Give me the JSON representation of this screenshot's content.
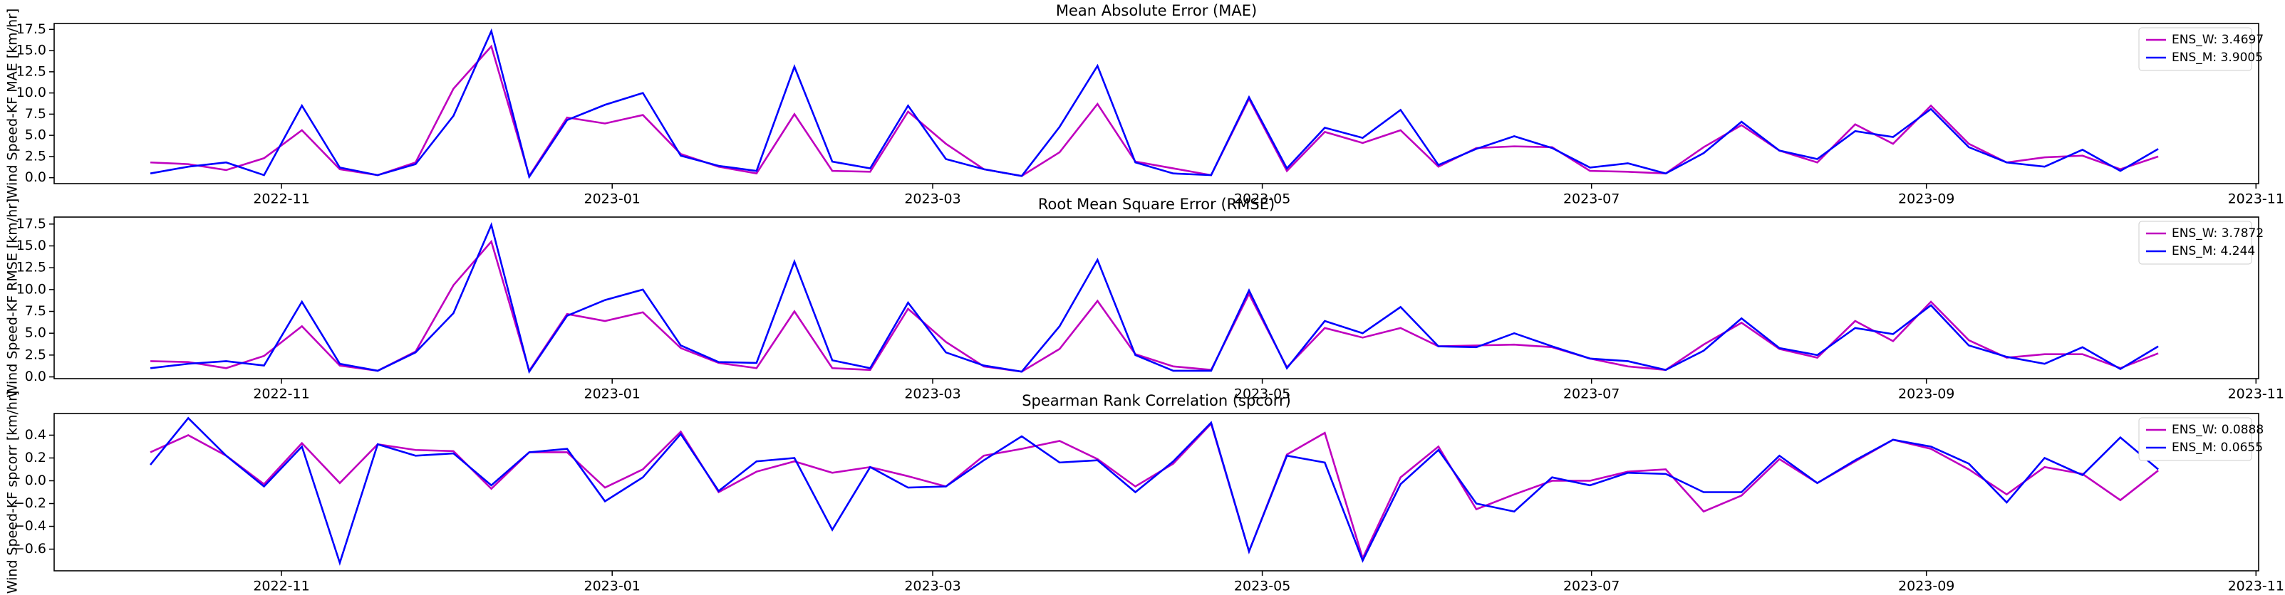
{
  "chart_data": [
    {
      "type": "line",
      "title": "Mean Absolute Error (MAE)",
      "y_label": "Wind Speed-KF MAE [km/hr]",
      "categories": [
        null,
        null,
        null,
        null,
        null,
        null,
        null,
        null,
        null,
        null,
        null,
        null,
        null,
        null,
        null,
        null,
        null,
        null,
        null,
        null,
        null,
        null,
        null,
        null,
        null,
        null,
        null,
        null,
        null,
        null,
        null,
        null,
        null,
        null,
        null,
        null,
        null,
        null,
        null,
        null,
        null,
        null,
        null,
        null,
        null,
        null,
        null,
        null,
        null,
        null,
        null,
        null,
        null,
        null
      ],
      "xlim": [
        -2.54,
        55.65
      ],
      "xticks": [
        {
          "value": 3.46,
          "label": "2022-11"
        },
        {
          "value": 12.19,
          "label": "2023-01"
        },
        {
          "value": 20.65,
          "label": "2023-03"
        },
        {
          "value": 29.35,
          "label": "2023-05"
        },
        {
          "value": 38.04,
          "label": "2023-07"
        },
        {
          "value": 46.88,
          "label": "2023-09"
        },
        {
          "value": 55.58,
          "label": "2023-11"
        }
      ],
      "ylim": [
        -0.7,
        18.2
      ],
      "yticks": [
        {
          "value": 0,
          "label": "0.0"
        },
        2.5,
        {
          "value": 5,
          "label": "5.0"
        },
        7.5,
        {
          "value": 10,
          "label": "10.0"
        },
        12.5,
        {
          "value": 15,
          "label": "15.0"
        },
        17.5
      ],
      "legend": "upper right",
      "series": [
        {
          "name": "ENS_W: 3.4697",
          "color": "#bf00bf",
          "values": [
            1.8,
            1.6,
            0.9,
            2.3,
            5.6,
            1.0,
            0.3,
            1.8,
            10.5,
            15.5,
            0.2,
            7.1,
            6.4,
            7.4,
            2.8,
            1.3,
            0.5,
            7.5,
            0.8,
            0.7,
            7.8,
            4.0,
            1.0,
            0.2,
            3.0,
            8.7,
            1.9,
            1.1,
            0.3,
            9.3,
            0.8,
            5.4,
            4.1,
            5.6,
            1.3,
            3.5,
            3.7,
            3.6,
            0.8,
            0.7,
            0.5,
            3.6,
            6.2,
            3.2,
            1.8,
            6.3,
            4.0,
            8.5,
            4.0,
            1.8,
            2.4,
            2.6,
            1.0,
            2.5
          ]
        },
        {
          "name": "ENS_M: 3.9005",
          "color": "#0000ff",
          "values": [
            0.5,
            1.3,
            1.8,
            0.3,
            8.5,
            1.2,
            0.3,
            1.6,
            7.3,
            17.3,
            0.1,
            6.8,
            8.6,
            10.0,
            2.6,
            1.4,
            0.8,
            13.1,
            1.9,
            1.1,
            8.5,
            2.2,
            1.0,
            0.2,
            6.0,
            13.2,
            1.8,
            0.5,
            0.3,
            9.5,
            1.1,
            5.9,
            4.7,
            8.0,
            1.5,
            3.4,
            4.9,
            3.5,
            1.2,
            1.7,
            0.5,
            2.9,
            6.6,
            3.2,
            2.2,
            5.5,
            4.8,
            8.1,
            3.6,
            1.8,
            1.3,
            3.3,
            0.8,
            3.4
          ]
        }
      ]
    },
    {
      "type": "line",
      "title": "Root Mean Square Error (RMSE)",
      "y_label": "Wind Speed-KF RMSE [km/hr]",
      "categories": [
        null,
        null,
        null,
        null,
        null,
        null,
        null,
        null,
        null,
        null,
        null,
        null,
        null,
        null,
        null,
        null,
        null,
        null,
        null,
        null,
        null,
        null,
        null,
        null,
        null,
        null,
        null,
        null,
        null,
        null,
        null,
        null,
        null,
        null,
        null,
        null,
        null,
        null,
        null,
        null,
        null,
        null,
        null,
        null,
        null,
        null,
        null,
        null,
        null,
        null,
        null,
        null,
        null,
        null
      ],
      "xlim": [
        -2.54,
        55.65
      ],
      "xticks": [
        {
          "value": 3.46,
          "label": "2022-11"
        },
        {
          "value": 12.19,
          "label": "2023-01"
        },
        {
          "value": 20.65,
          "label": "2023-03"
        },
        {
          "value": 29.35,
          "label": "2023-05"
        },
        {
          "value": 38.04,
          "label": "2023-07"
        },
        {
          "value": 46.88,
          "label": "2023-09"
        },
        {
          "value": 55.58,
          "label": "2023-11"
        }
      ],
      "ylim": [
        -0.2,
        18.3
      ],
      "yticks": [
        {
          "value": 0,
          "label": "0.0"
        },
        2.5,
        {
          "value": 5,
          "label": "5.0"
        },
        7.5,
        {
          "value": 10,
          "label": "10.0"
        },
        12.5,
        {
          "value": 15,
          "label": "15.0"
        },
        17.5
      ],
      "legend": "upper right",
      "series": [
        {
          "name": "ENS_W: 3.7872",
          "color": "#bf00bf",
          "values": [
            1.8,
            1.7,
            1.0,
            2.4,
            5.8,
            1.3,
            0.7,
            2.9,
            10.5,
            15.5,
            0.7,
            7.2,
            6.4,
            7.4,
            3.3,
            1.6,
            1.0,
            7.5,
            1.0,
            0.8,
            7.8,
            4.0,
            1.2,
            0.6,
            3.2,
            8.7,
            2.6,
            1.2,
            0.8,
            9.5,
            1.1,
            5.6,
            4.5,
            5.6,
            3.5,
            3.6,
            3.7,
            3.4,
            2.1,
            1.2,
            0.8,
            3.7,
            6.2,
            3.2,
            2.2,
            6.4,
            4.1,
            8.6,
            4.2,
            2.2,
            2.6,
            2.6,
            1.0,
            2.7
          ]
        },
        {
          "name": "ENS_M: 4.244",
          "color": "#0000ff",
          "values": [
            1.0,
            1.5,
            1.8,
            1.3,
            8.6,
            1.5,
            0.7,
            2.8,
            7.3,
            17.4,
            0.6,
            7.0,
            8.8,
            10.0,
            3.6,
            1.7,
            1.6,
            13.2,
            1.9,
            1.0,
            8.5,
            2.8,
            1.3,
            0.6,
            5.8,
            13.4,
            2.5,
            0.7,
            0.7,
            9.9,
            1.0,
            6.4,
            5.0,
            8.0,
            3.5,
            3.4,
            5.0,
            3.5,
            2.1,
            1.8,
            0.8,
            3.0,
            6.7,
            3.3,
            2.5,
            5.6,
            4.9,
            8.2,
            3.6,
            2.3,
            1.5,
            3.4,
            0.9,
            3.5
          ]
        }
      ]
    },
    {
      "type": "line",
      "title": "Spearman Rank Correlation (spcorr)",
      "y_label": "Wind Speed-KF spcorr [km/hr]",
      "categories": [
        null,
        null,
        null,
        null,
        null,
        null,
        null,
        null,
        null,
        null,
        null,
        null,
        null,
        null,
        null,
        null,
        null,
        null,
        null,
        null,
        null,
        null,
        null,
        null,
        null,
        null,
        null,
        null,
        null,
        null,
        null,
        null,
        null,
        null,
        null,
        null,
        null,
        null,
        null,
        null,
        null,
        null,
        null,
        null,
        null,
        null,
        null,
        null,
        null,
        null,
        null,
        null,
        null,
        null
      ],
      "xlim": [
        -2.54,
        55.65
      ],
      "xticks": [
        {
          "value": 3.46,
          "label": "2022-11"
        },
        {
          "value": 12.19,
          "label": "2023-01"
        },
        {
          "value": 20.65,
          "label": "2023-03"
        },
        {
          "value": 29.35,
          "label": "2023-05"
        },
        {
          "value": 38.04,
          "label": "2023-07"
        },
        {
          "value": 46.88,
          "label": "2023-09"
        },
        {
          "value": 55.58,
          "label": "2023-11"
        }
      ],
      "ylim": [
        -0.79,
        0.59
      ],
      "yticks": [
        {
          "value": -0.6,
          "label": "−0.6"
        },
        {
          "value": -0.4,
          "label": "−0.4"
        },
        {
          "value": -0.2,
          "label": "−0.2"
        },
        {
          "value": 0,
          "label": "0.0"
        },
        0.2,
        0.4
      ],
      "legend": "upper right",
      "series": [
        {
          "name": "ENS_W: 0.0888",
          "color": "#bf00bf",
          "values": [
            0.25,
            0.4,
            0.22,
            -0.03,
            0.33,
            -0.02,
            0.32,
            0.27,
            0.26,
            -0.07,
            0.25,
            0.25,
            -0.06,
            0.1,
            0.43,
            -0.1,
            0.08,
            0.17,
            0.07,
            0.12,
            0.04,
            -0.05,
            0.22,
            0.28,
            0.35,
            0.19,
            -0.05,
            0.15,
            0.5,
            -0.62,
            0.23,
            0.42,
            -0.68,
            0.03,
            0.3,
            -0.25,
            -0.12,
            0.0,
            0.0,
            0.08,
            0.1,
            -0.27,
            -0.13,
            0.19,
            -0.02,
            0.17,
            0.36,
            0.28,
            0.1,
            -0.12,
            0.12,
            0.06,
            -0.17,
            0.09
          ]
        },
        {
          "name": "ENS_M: 0.0655",
          "color": "#0000ff",
          "values": [
            0.14,
            0.55,
            0.22,
            -0.05,
            0.3,
            -0.72,
            0.32,
            0.22,
            0.24,
            -0.04,
            0.25,
            0.28,
            -0.18,
            0.03,
            0.41,
            -0.09,
            0.17,
            0.2,
            -0.43,
            0.12,
            -0.06,
            -0.05,
            0.18,
            0.39,
            0.16,
            0.18,
            -0.1,
            0.17,
            0.51,
            -0.62,
            0.22,
            0.16,
            -0.7,
            -0.03,
            0.27,
            -0.2,
            -0.27,
            0.03,
            -0.04,
            0.07,
            0.06,
            -0.1,
            -0.1,
            0.22,
            -0.02,
            0.18,
            0.36,
            0.3,
            0.15,
            -0.19,
            0.2,
            0.05,
            0.38,
            0.1
          ]
        }
      ]
    }
  ]
}
